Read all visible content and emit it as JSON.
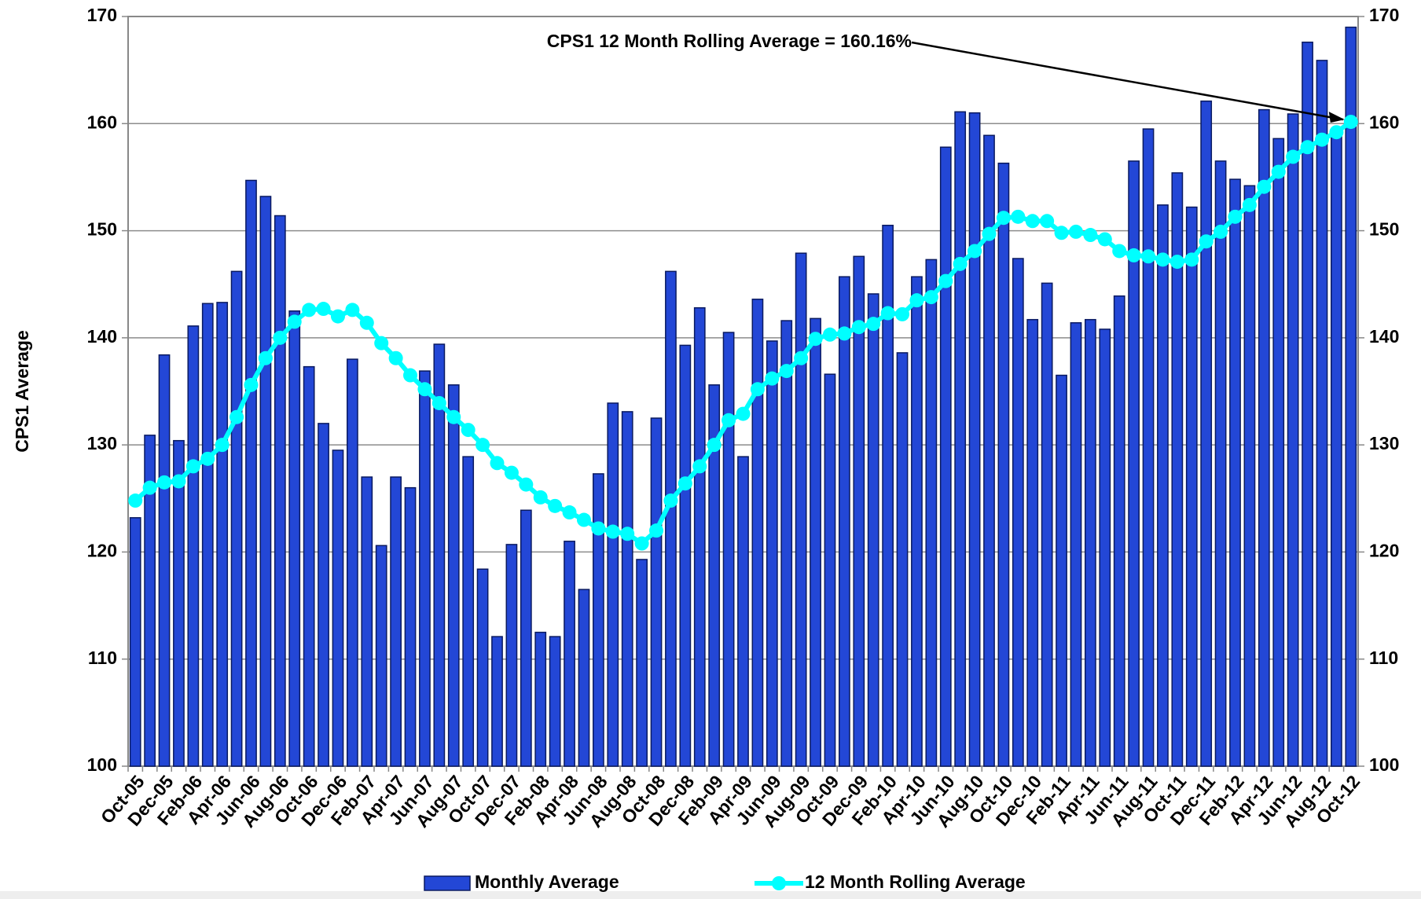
{
  "chart_data": {
    "type": "bar",
    "annotation": "CPS1 12 Month Rolling Average = 160.16%",
    "y_label": "CPS1 Average",
    "categories": [
      "Oct-05",
      null,
      "Dec-05",
      null,
      "Feb-06",
      null,
      "Apr-06",
      null,
      "Jun-06",
      null,
      "Aug-06",
      null,
      "Oct-06",
      null,
      "Dec-06",
      null,
      "Feb-07",
      null,
      "Apr-07",
      null,
      "Jun-07",
      null,
      "Aug-07",
      null,
      "Oct-07",
      null,
      "Dec-07",
      null,
      "Feb-08",
      null,
      "Apr-08",
      null,
      "Jun-08",
      null,
      "Aug-08",
      null,
      "Oct-08",
      null,
      "Dec-08",
      null,
      "Feb-09",
      null,
      "Apr-09",
      null,
      "Jun-09",
      null,
      "Aug-09",
      null,
      "Oct-09",
      null,
      "Dec-09",
      null,
      "Feb-10",
      null,
      "Apr-10",
      null,
      "Jun-10",
      null,
      "Aug-10",
      null,
      "Oct-10",
      null,
      "Dec-10",
      null,
      "Feb-11",
      null,
      "Apr-11",
      null,
      "Jun-11",
      null,
      "Aug-11",
      null,
      "Oct-11",
      null,
      "Dec-11",
      null,
      "Feb-12",
      null,
      "Apr-12",
      null,
      "Jun-12",
      null,
      "Aug-12",
      null,
      "Oct-12"
    ],
    "series": [
      {
        "name": "Monthly Average",
        "type": "bar",
        "color": "#2347d6",
        "values": [
          123.2,
          130.9,
          138.4,
          130.4,
          141.1,
          143.2,
          143.3,
          146.2,
          154.7,
          153.2,
          151.4,
          142.5,
          137.3,
          132.0,
          129.5,
          138.0,
          127.0,
          120.6,
          127.0,
          126.0,
          136.9,
          139.4,
          135.6,
          128.9,
          118.4,
          112.1,
          120.7,
          123.9,
          112.5,
          112.1,
          121.0,
          116.5,
          127.3,
          133.9,
          133.1,
          119.3,
          132.5,
          146.2,
          139.3,
          142.8,
          135.6,
          140.5,
          128.9,
          143.6,
          139.7,
          141.6,
          147.9,
          141.8,
          136.6,
          145.7,
          147.6,
          144.1,
          150.5,
          138.6,
          145.7,
          147.3,
          157.8,
          161.1,
          161.0,
          158.9,
          156.3,
          147.4,
          141.7,
          145.1,
          136.5,
          141.4,
          141.7,
          140.8,
          143.9,
          156.5,
          159.5,
          152.4,
          155.4,
          152.2,
          162.1,
          156.5,
          154.8,
          154.2,
          161.3,
          158.6,
          160.9,
          167.6,
          165.9,
          159.0,
          169.0
        ]
      },
      {
        "name": "12 Month Rolling Average",
        "type": "line",
        "color": "#00ffff",
        "values": [
          124.8,
          126.0,
          126.5,
          126.6,
          128.0,
          128.7,
          130.0,
          132.6,
          135.6,
          138.1,
          140.0,
          141.5,
          142.6,
          142.7,
          142.0,
          142.6,
          141.4,
          139.5,
          138.1,
          136.5,
          135.2,
          133.9,
          132.6,
          131.4,
          130.0,
          128.3,
          127.4,
          126.3,
          125.1,
          124.3,
          123.7,
          123.0,
          122.2,
          121.9,
          121.7,
          120.8,
          122.0,
          124.8,
          126.4,
          128.0,
          130.0,
          132.3,
          132.9,
          135.2,
          136.2,
          136.9,
          138.1,
          139.9,
          140.3,
          140.4,
          141.0,
          141.3,
          142.3,
          142.2,
          143.5,
          143.8,
          145.3,
          146.9,
          148.1,
          149.7,
          151.2,
          151.3,
          150.9,
          150.9,
          149.8,
          149.9,
          149.6,
          149.2,
          148.1,
          147.7,
          147.6,
          147.3,
          147.1,
          147.3,
          149.0,
          149.9,
          151.3,
          152.4,
          154.1,
          155.5,
          156.9,
          157.8,
          158.5,
          159.2,
          160.16
        ]
      }
    ],
    "ylim": [
      100,
      170
    ],
    "yticks": [
      100,
      110,
      120,
      130,
      140,
      150,
      160,
      170
    ],
    "y2lim": [
      100,
      170
    ],
    "y2ticks": [
      100,
      110,
      120,
      130,
      140,
      150,
      160,
      170
    ],
    "grid": true,
    "legend": "bottom"
  }
}
